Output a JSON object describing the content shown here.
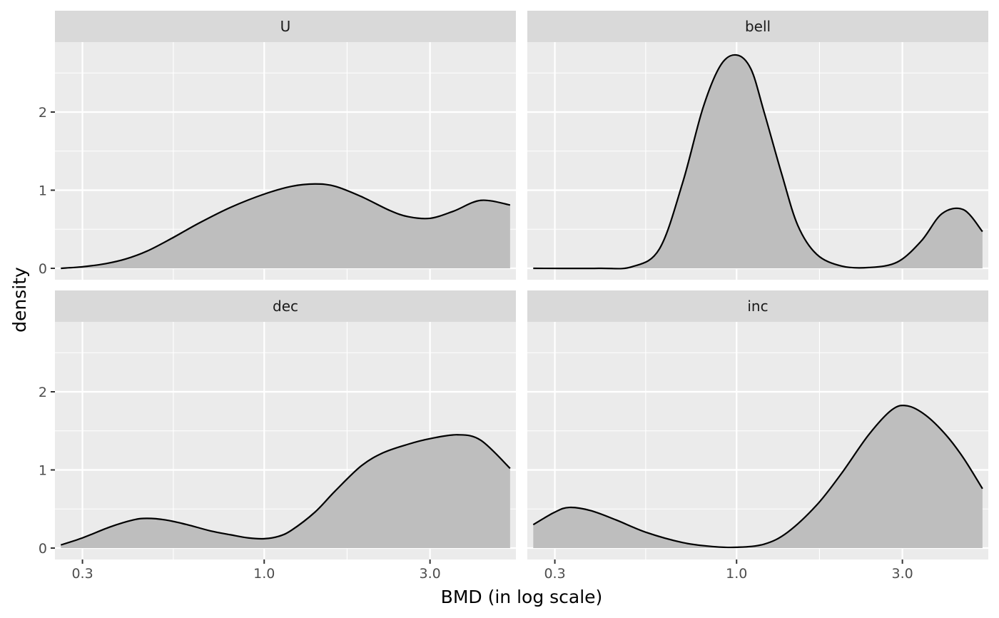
{
  "chart_data": {
    "type": "area",
    "subtype": "faceted density",
    "xlabel": "BMD (in log scale)",
    "ylabel": "density",
    "x_scale": "log10",
    "xlim": [
      0.25,
      5.3
    ],
    "ylim": [
      0,
      2.85
    ],
    "x_ticks": [
      0.3,
      1.0,
      3.0
    ],
    "x_tick_labels": [
      "0.3",
      "1.0",
      "3.0"
    ],
    "y_ticks": [
      0,
      1,
      2
    ],
    "y_tick_labels": [
      "0",
      "1",
      "2"
    ],
    "grid": true,
    "legend": "none",
    "colors": {
      "fill": "#bebebe",
      "line": "#000000",
      "panel_bg": "#ebebeb",
      "strip_bg": "#d9d9d9",
      "grid": "#ffffff"
    },
    "facets": [
      {
        "label": "U",
        "x": [
          0.26,
          0.3,
          0.35,
          0.4,
          0.46,
          0.54,
          0.65,
          0.8,
          1.0,
          1.2,
          1.4,
          1.6,
          1.9,
          2.3,
          2.6,
          3.0,
          3.5,
          4.2,
          5.1
        ],
        "y": [
          0.0,
          0.02,
          0.06,
          0.12,
          0.22,
          0.38,
          0.58,
          0.78,
          0.95,
          1.05,
          1.08,
          1.05,
          0.92,
          0.74,
          0.66,
          0.64,
          0.73,
          0.87,
          0.81
        ]
      },
      {
        "label": "bell",
        "x": [
          0.26,
          0.4,
          0.5,
          0.6,
          0.7,
          0.8,
          0.9,
          1.0,
          1.1,
          1.2,
          1.35,
          1.5,
          1.7,
          2.0,
          2.4,
          2.9,
          3.4,
          3.9,
          4.5,
          5.1
        ],
        "y": [
          0.0,
          0.0,
          0.02,
          0.25,
          1.1,
          2.05,
          2.6,
          2.73,
          2.55,
          2.0,
          1.2,
          0.55,
          0.18,
          0.03,
          0.01,
          0.08,
          0.35,
          0.7,
          0.75,
          0.47
        ]
      },
      {
        "label": "dec",
        "x": [
          0.26,
          0.3,
          0.36,
          0.42,
          0.46,
          0.52,
          0.6,
          0.7,
          0.8,
          0.9,
          1.0,
          1.1,
          1.2,
          1.4,
          1.6,
          1.9,
          2.2,
          2.6,
          3.0,
          3.6,
          4.2,
          5.1
        ],
        "y": [
          0.04,
          0.13,
          0.27,
          0.36,
          0.38,
          0.36,
          0.3,
          0.22,
          0.17,
          0.13,
          0.12,
          0.15,
          0.23,
          0.46,
          0.73,
          1.05,
          1.22,
          1.33,
          1.4,
          1.45,
          1.38,
          1.02
        ]
      },
      {
        "label": "inc",
        "x": [
          0.26,
          0.3,
          0.33,
          0.38,
          0.45,
          0.55,
          0.7,
          0.85,
          1.0,
          1.2,
          1.4,
          1.7,
          2.0,
          2.4,
          2.8,
          3.1,
          3.5,
          4.0,
          4.5,
          5.1
        ],
        "y": [
          0.3,
          0.46,
          0.52,
          0.48,
          0.36,
          0.2,
          0.07,
          0.02,
          0.01,
          0.05,
          0.2,
          0.55,
          0.95,
          1.45,
          1.77,
          1.82,
          1.7,
          1.45,
          1.15,
          0.76
        ]
      }
    ]
  }
}
